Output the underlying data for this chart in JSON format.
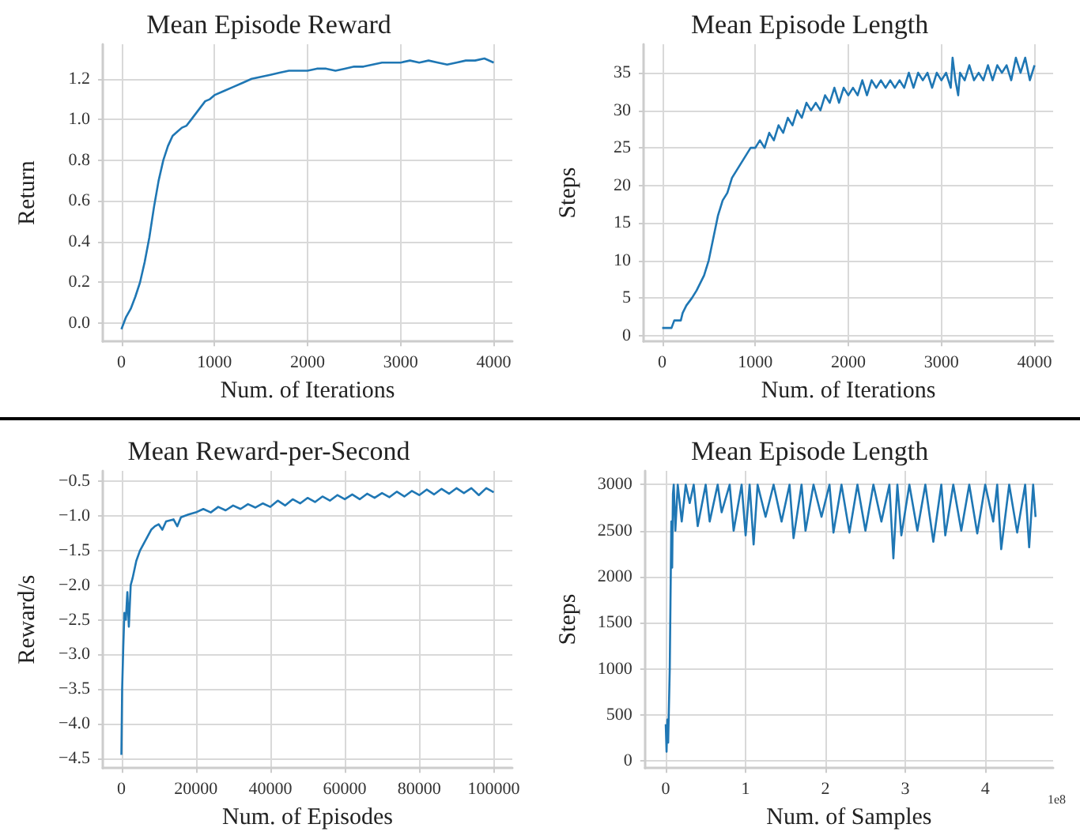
{
  "chart_data": [
    {
      "type": "line",
      "title": "Mean Episode Reward",
      "xlabel": "Num. of Iterations",
      "ylabel": "Return",
      "color": "#1f77b4",
      "grid": true,
      "xlim": [
        -200,
        4200
      ],
      "ylim": [
        -0.09,
        1.37
      ],
      "xticks": [
        0,
        1000,
        2000,
        3000,
        4000
      ],
      "yticks": [
        {
          "value": 0,
          "label": "0.0"
        },
        0.2,
        0.4,
        0.6,
        0.8,
        {
          "value": 1,
          "label": "1.0"
        },
        1.2
      ],
      "x": [
        0,
        50,
        100,
        150,
        200,
        250,
        300,
        350,
        400,
        450,
        500,
        550,
        600,
        650,
        700,
        750,
        800,
        850,
        900,
        950,
        1000,
        1100,
        1200,
        1300,
        1400,
        1500,
        1600,
        1700,
        1800,
        1900,
        2000,
        2100,
        2200,
        2300,
        2400,
        2500,
        2600,
        2700,
        2800,
        2900,
        3000,
        3100,
        3200,
        3300,
        3400,
        3500,
        3600,
        3700,
        3800,
        3900,
        4000
      ],
      "values": [
        -0.03,
        0.03,
        0.07,
        0.13,
        0.2,
        0.3,
        0.42,
        0.57,
        0.7,
        0.8,
        0.87,
        0.92,
        0.94,
        0.96,
        0.97,
        1.0,
        1.03,
        1.06,
        1.09,
        1.1,
        1.12,
        1.14,
        1.16,
        1.18,
        1.2,
        1.21,
        1.22,
        1.23,
        1.24,
        1.24,
        1.24,
        1.25,
        1.25,
        1.24,
        1.25,
        1.26,
        1.26,
        1.27,
        1.28,
        1.28,
        1.28,
        1.29,
        1.28,
        1.29,
        1.28,
        1.27,
        1.28,
        1.29,
        1.29,
        1.3,
        1.28
      ]
    },
    {
      "type": "line",
      "title": "Mean Episode Length",
      "xlabel": "Num. of Iterations",
      "ylabel": "Steps",
      "color": "#1f77b4",
      "grid": true,
      "xlim": [
        -200,
        4200
      ],
      "ylim": [
        -0.8,
        38.8
      ],
      "xticks": [
        0,
        1000,
        2000,
        3000,
        4000
      ],
      "yticks": [
        0,
        5,
        10,
        15,
        20,
        25,
        30,
        35
      ],
      "x": [
        0,
        100,
        130,
        200,
        220,
        260,
        320,
        370,
        410,
        450,
        500,
        550,
        600,
        650,
        700,
        750,
        800,
        850,
        900,
        950,
        1000,
        1050,
        1100,
        1150,
        1200,
        1250,
        1300,
        1350,
        1400,
        1450,
        1500,
        1550,
        1600,
        1650,
        1700,
        1750,
        1800,
        1850,
        1900,
        1950,
        2000,
        2050,
        2100,
        2150,
        2200,
        2250,
        2300,
        2350,
        2400,
        2450,
        2500,
        2550,
        2600,
        2650,
        2700,
        2750,
        2800,
        2850,
        2900,
        2950,
        3000,
        3050,
        3100,
        3120,
        3150,
        3180,
        3200,
        3250,
        3300,
        3350,
        3400,
        3450,
        3500,
        3550,
        3600,
        3650,
        3700,
        3750,
        3800,
        3850,
        3900,
        3950,
        4000
      ],
      "values": [
        1,
        1,
        2,
        2,
        3,
        4,
        5,
        6,
        7,
        8,
        10,
        13,
        16,
        18,
        19,
        21,
        22,
        23,
        24,
        25,
        25,
        26,
        25,
        27,
        26,
        28,
        27,
        29,
        28,
        30,
        29,
        31,
        30,
        31,
        30,
        32,
        31,
        33,
        31,
        33,
        32,
        33,
        32,
        34,
        32,
        34,
        33,
        34,
        33,
        34,
        33,
        34,
        33,
        35,
        33,
        35,
        34,
        35,
        33,
        35,
        34,
        35,
        33,
        37,
        34,
        32,
        35,
        34,
        36,
        34,
        35,
        34,
        36,
        34,
        36,
        35,
        36,
        34,
        37,
        35,
        37,
        34,
        36
      ]
    },
    {
      "type": "line",
      "title": "Mean Reward-per-Second",
      "xlabel": "Num. of Episodes",
      "ylabel": "Reward/s",
      "color": "#1f77b4",
      "grid": true,
      "xlim": [
        -5000,
        105000
      ],
      "ylim": [
        -4.64,
        -0.35
      ],
      "xticks": [
        0,
        20000,
        40000,
        60000,
        80000,
        100000
      ],
      "yticks": [
        {
          "value": -4.5,
          "label": "−4.5"
        },
        {
          "value": -4,
          "label": "−4.0"
        },
        {
          "value": -3.5,
          "label": "−3.5"
        },
        {
          "value": -3,
          "label": "−3.0"
        },
        {
          "value": -2.5,
          "label": "−2.5"
        },
        {
          "value": -2,
          "label": "−2.0"
        },
        {
          "value": -1.5,
          "label": "−1.5"
        },
        {
          "value": -1,
          "label": "−1.0"
        },
        {
          "value": -0.5,
          "label": "−0.5"
        }
      ],
      "x": [
        0,
        200,
        500,
        800,
        1200,
        1600,
        2000,
        2500,
        3000,
        4000,
        5000,
        6000,
        7000,
        8000,
        9000,
        10000,
        11000,
        12000,
        14000,
        15000,
        16000,
        18000,
        20000,
        22000,
        24000,
        26000,
        28000,
        30000,
        32000,
        34000,
        36000,
        38000,
        40000,
        42000,
        44000,
        46000,
        48000,
        50000,
        52000,
        54000,
        56000,
        58000,
        60000,
        62000,
        64000,
        66000,
        68000,
        70000,
        72000,
        74000,
        76000,
        78000,
        80000,
        82000,
        84000,
        86000,
        88000,
        90000,
        92000,
        94000,
        96000,
        98000,
        100000
      ],
      "values": [
        -4.45,
        -3.5,
        -2.9,
        -2.4,
        -2.5,
        -2.1,
        -2.6,
        -2.0,
        -1.9,
        -1.65,
        -1.5,
        -1.4,
        -1.3,
        -1.2,
        -1.15,
        -1.12,
        -1.2,
        -1.08,
        -1.05,
        -1.15,
        -1.02,
        -0.98,
        -0.95,
        -0.9,
        -0.95,
        -0.87,
        -0.92,
        -0.85,
        -0.9,
        -0.83,
        -0.88,
        -0.82,
        -0.87,
        -0.78,
        -0.85,
        -0.76,
        -0.82,
        -0.74,
        -0.8,
        -0.72,
        -0.78,
        -0.7,
        -0.76,
        -0.69,
        -0.76,
        -0.68,
        -0.74,
        -0.67,
        -0.73,
        -0.65,
        -0.72,
        -0.64,
        -0.7,
        -0.62,
        -0.69,
        -0.61,
        -0.68,
        -0.6,
        -0.67,
        -0.6,
        -0.7,
        -0.6,
        -0.66
      ]
    },
    {
      "type": "line",
      "title": "Mean Episode Length",
      "xlabel": "Num. of Samples",
      "ylabel": "Steps",
      "color": "#1f77b4",
      "grid": true,
      "annotations": [
        "1e8"
      ],
      "xlim": [
        -0.26,
        4.85
      ],
      "ylim": [
        -77,
        3150
      ],
      "xticks": [
        0,
        1,
        2,
        3,
        4
      ],
      "yticks": [
        0,
        500,
        1000,
        1500,
        2000,
        2500,
        3000
      ],
      "x": [
        0,
        0.01,
        0.02,
        0.03,
        0.04,
        0.05,
        0.06,
        0.07,
        0.08,
        0.09,
        0.1,
        0.12,
        0.15,
        0.2,
        0.25,
        0.3,
        0.35,
        0.4,
        0.5,
        0.55,
        0.65,
        0.7,
        0.8,
        0.85,
        0.95,
        1.0,
        1.05,
        1.1,
        1.15,
        1.25,
        1.35,
        1.45,
        1.55,
        1.6,
        1.7,
        1.75,
        1.85,
        1.95,
        2.05,
        2.1,
        2.2,
        2.3,
        2.4,
        2.5,
        2.6,
        2.7,
        2.8,
        2.85,
        2.9,
        2.95,
        3.05,
        3.15,
        3.25,
        3.35,
        3.45,
        3.5,
        3.6,
        3.7,
        3.8,
        3.9,
        4.0,
        4.1,
        4.15,
        4.2,
        4.3,
        4.4,
        4.5,
        4.55,
        4.6,
        4.63
      ],
      "values": [
        400,
        100,
        450,
        200,
        600,
        1000,
        1800,
        2600,
        2100,
        2900,
        3000,
        2500,
        3000,
        2600,
        3000,
        2800,
        3000,
        2550,
        3000,
        2600,
        3000,
        2700,
        3000,
        2500,
        3000,
        2450,
        3000,
        2350,
        3000,
        2650,
        3000,
        2600,
        3000,
        2420,
        3000,
        2500,
        3000,
        2650,
        3000,
        2480,
        3000,
        2480,
        3000,
        2500,
        3000,
        2600,
        3000,
        2200,
        3000,
        2450,
        3000,
        2500,
        3000,
        2380,
        3000,
        2450,
        3000,
        2500,
        3000,
        2470,
        3000,
        2600,
        3000,
        2300,
        3000,
        2480,
        3000,
        2320,
        3000,
        2650
      ]
    }
  ]
}
